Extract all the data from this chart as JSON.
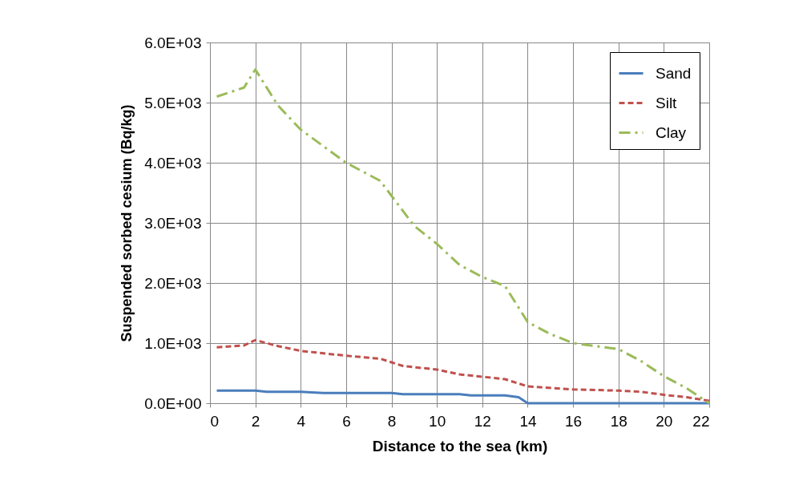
{
  "chart_data": {
    "type": "line",
    "xlabel": "Distance to the sea (km)",
    "ylabel": "Suspended sorbed cesium (Bq/kg)",
    "xlim": [
      0,
      22
    ],
    "xticks": [
      0,
      2,
      4,
      6,
      8,
      10,
      12,
      14,
      16,
      18,
      20,
      22
    ],
    "ylim": [
      0,
      6000
    ],
    "yticks": [
      {
        "value": 0,
        "label": "0.0E+00"
      },
      {
        "value": 1000,
        "label": "1.0E+03"
      },
      {
        "value": 2000,
        "label": "2.0E+03"
      },
      {
        "value": 3000,
        "label": "3.0E+03"
      },
      {
        "value": 4000,
        "label": "4.0E+03"
      },
      {
        "value": 5000,
        "label": "5.0E+03"
      },
      {
        "value": 6000,
        "label": "6.0E+03"
      }
    ],
    "grid": true,
    "legend": "top right",
    "marker": "none",
    "series": [
      {
        "name": "Sand",
        "color": "#4a7ebb",
        "line_style": "solid",
        "x": [
          0.3,
          2,
          2.5,
          4,
          5,
          8,
          8.5,
          11,
          11.5,
          13,
          13.6,
          14,
          22
        ],
        "values": [
          210,
          210,
          190,
          190,
          170,
          170,
          150,
          150,
          130,
          130,
          100,
          0,
          0
        ]
      },
      {
        "name": "Silt",
        "color": "#c0504d",
        "line_style": "dashed",
        "x": [
          0.3,
          1.5,
          2,
          3,
          4,
          6,
          7.5,
          8,
          8.5,
          10,
          11,
          12,
          13,
          14,
          16,
          18,
          19,
          20,
          21,
          22
        ],
        "values": [
          930,
          960,
          1050,
          950,
          870,
          790,
          740,
          680,
          620,
          560,
          480,
          440,
          400,
          280,
          230,
          210,
          190,
          140,
          100,
          40
        ]
      },
      {
        "name": "Clay",
        "color": "#9bbb59",
        "line_style": "dashdot",
        "x": [
          0.3,
          1.5,
          2,
          3,
          4,
          6,
          7.5,
          8,
          9,
          10,
          11,
          12,
          13,
          14,
          15,
          16,
          17,
          18,
          19,
          20,
          21,
          22
        ],
        "values": [
          5100,
          5250,
          5550,
          4950,
          4550,
          4000,
          3700,
          3450,
          2950,
          2650,
          2300,
          2100,
          1950,
          1350,
          1150,
          1000,
          950,
          900,
          700,
          450,
          250,
          0
        ]
      }
    ]
  }
}
